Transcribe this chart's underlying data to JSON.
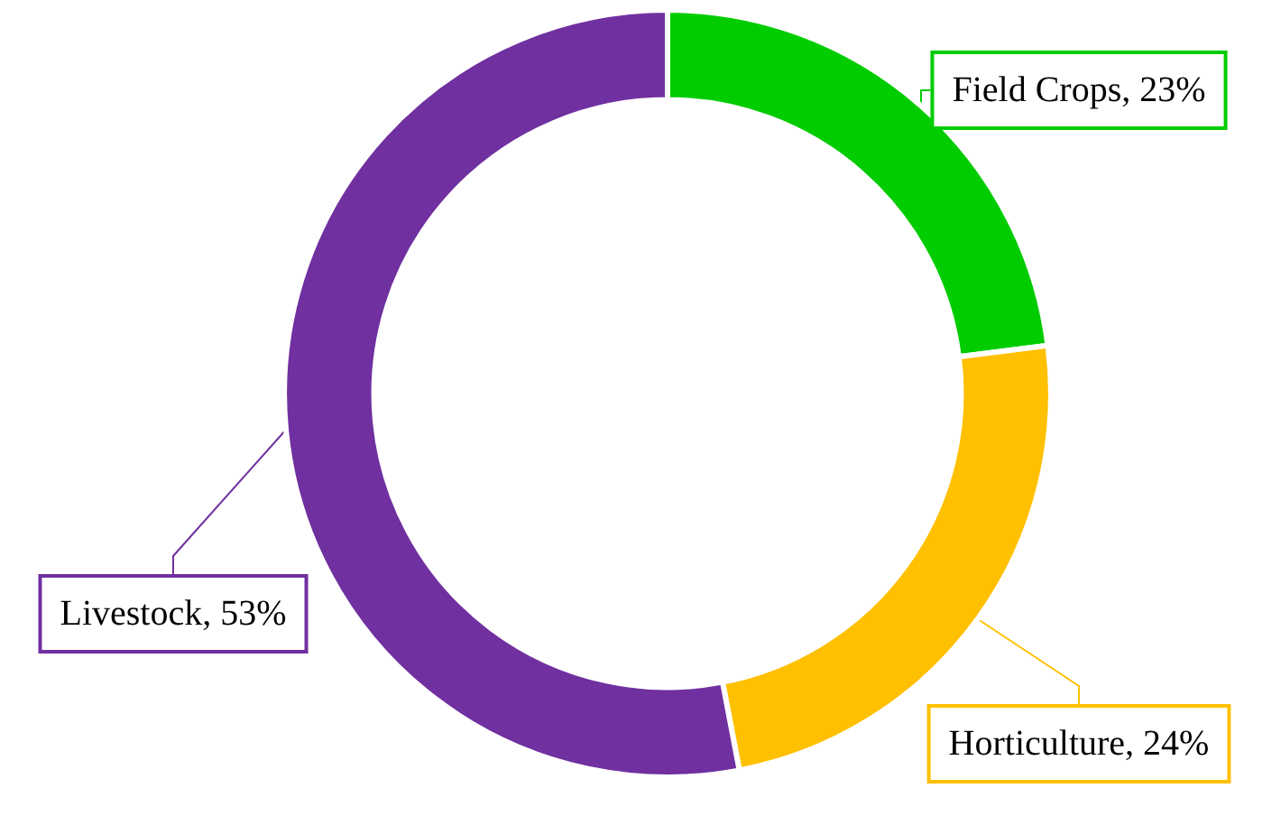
{
  "chart_data": {
    "type": "donut",
    "categories": [
      "Field Crops",
      "Horticulture",
      "Livestock"
    ],
    "values": [
      23,
      24,
      53
    ],
    "value_labels": [
      "23%",
      "24%",
      "53%"
    ],
    "colors": [
      "#00cc00",
      "#ffc000",
      "#7030a0"
    ],
    "legend": false
  }
}
